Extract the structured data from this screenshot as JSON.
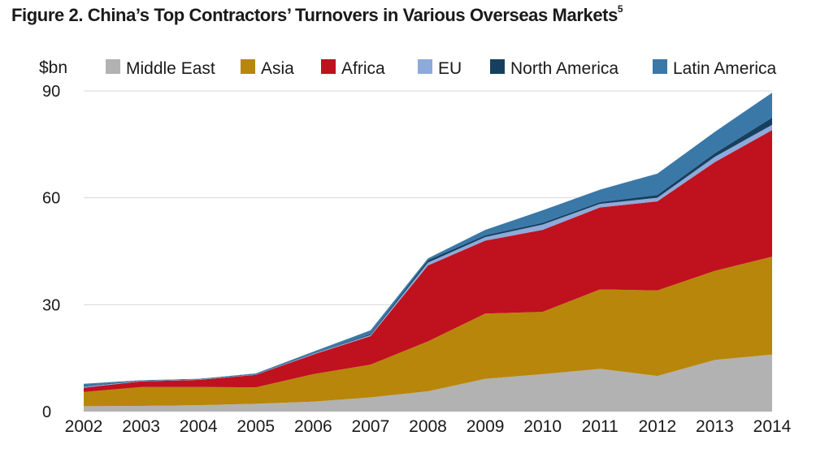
{
  "title": "Figure 2. China’s Top Contractors’ Turnovers in Various Overseas Markets",
  "title_superscript": "5",
  "chart_data": {
    "type": "area",
    "stacked": true,
    "ylabel": "$bn",
    "xlabel": "",
    "ylim": [
      0,
      90
    ],
    "yticks": [
      0,
      30,
      60,
      90
    ],
    "grid": true,
    "legend_position": "top",
    "categories": [
      "2002",
      "2003",
      "2004",
      "2005",
      "2006",
      "2007",
      "2008",
      "2009",
      "2010",
      "2011",
      "2012",
      "2013",
      "2014"
    ],
    "series": [
      {
        "name": "Middle East",
        "color": "#b2b2b2",
        "values": [
          1.5,
          1.6,
          1.8,
          2.2,
          2.8,
          4.0,
          5.7,
          9.2,
          10.5,
          12.0,
          10.0,
          14.5,
          16.0
        ]
      },
      {
        "name": "Asia",
        "color": "#b8860b",
        "values": [
          4.0,
          5.3,
          5.1,
          4.6,
          7.7,
          9.2,
          14.0,
          18.3,
          17.5,
          22.3,
          24.0,
          25.0,
          27.5
        ]
      },
      {
        "name": "Africa",
        "color": "#c0111f",
        "values": [
          1.2,
          1.6,
          2.0,
          3.5,
          5.5,
          8.0,
          21.3,
          20.5,
          23.0,
          23.0,
          25.0,
          30.5,
          35.5
        ]
      },
      {
        "name": "EU",
        "color": "#8eaadb",
        "values": [
          0.3,
          0.1,
          0.1,
          0.1,
          0.2,
          0.3,
          0.8,
          1.0,
          1.5,
          1.0,
          1.0,
          1.5,
          1.5
        ]
      },
      {
        "name": "North America",
        "color": "#17405f",
        "values": [
          0.2,
          0.1,
          0.1,
          0.1,
          0.1,
          0.3,
          0.7,
          0.5,
          0.5,
          0.5,
          0.8,
          1.0,
          2.0
        ]
      },
      {
        "name": "Latin America",
        "color": "#3a78a8",
        "values": [
          0.6,
          0.1,
          0.1,
          0.2,
          0.5,
          1.0,
          0.5,
          1.5,
          3.5,
          3.5,
          6.0,
          6.0,
          7.0
        ]
      }
    ]
  }
}
